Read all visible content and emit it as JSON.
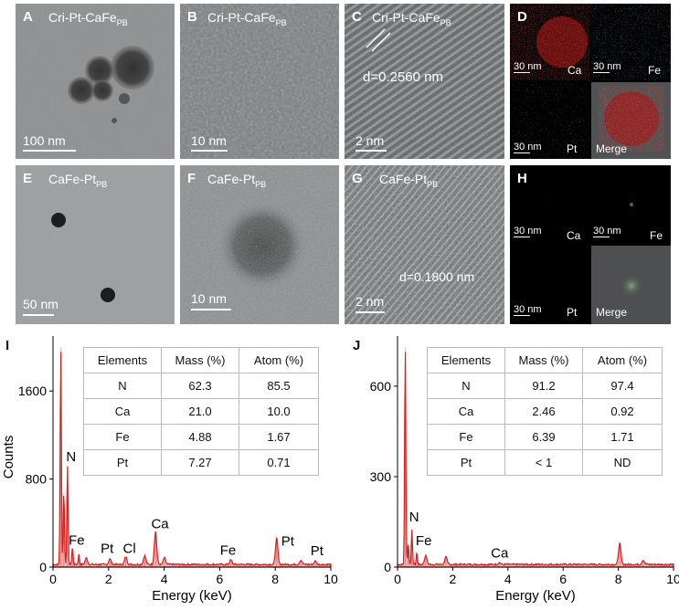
{
  "panels": {
    "A": {
      "letter": "A",
      "label_main": "Cri-Pt-CaFe",
      "label_sub": "PB",
      "scale": "100 nm"
    },
    "B": {
      "letter": "B",
      "label_main": "Cri-Pt-CaFe",
      "label_sub": "PB",
      "scale": "10 nm"
    },
    "C": {
      "letter": "C",
      "label_main": "Cri-Pt-CaFe",
      "label_sub": "PB",
      "scale": "2 nm",
      "annotation": "d=0.2560 nm"
    },
    "D": {
      "letter": "D",
      "maps": [
        {
          "element": "Ca",
          "scale": "30 nm",
          "color": "#d21e1e"
        },
        {
          "element": "Fe",
          "scale": "30 nm",
          "color": "#22a0c8"
        },
        {
          "element": "Pt",
          "scale": "30 nm",
          "color": "#3a8a3a"
        },
        {
          "element": "Merge",
          "scale": "",
          "color": "#d21e1e"
        }
      ]
    },
    "E": {
      "letter": "E",
      "label_main": "CaFe-Pt",
      "label_sub": "PB",
      "scale": "50 nm"
    },
    "F": {
      "letter": "F",
      "label_main": "CaFe-Pt",
      "label_sub": "PB",
      "scale": "10 nm"
    },
    "G": {
      "letter": "G",
      "label_main": "CaFe-Pt",
      "label_sub": "PB",
      "scale": "2 nm",
      "annotation": "d=0.1800 nm"
    },
    "H": {
      "letter": "H",
      "maps": [
        {
          "element": "Ca",
          "scale": "30 nm",
          "color": "#1a6a2a"
        },
        {
          "element": "Fe",
          "scale": "30 nm",
          "color": "#1a6a2a"
        },
        {
          "element": "Pt",
          "scale": "30 nm",
          "color": "#1a6a2a"
        },
        {
          "element": "Merge",
          "scale": "",
          "color": "#3a8a3a"
        }
      ]
    }
  },
  "chart_data": [
    {
      "letter": "I",
      "type": "line",
      "xlabel": "Energy (keV)",
      "ylabel": "Counts",
      "xlim": [
        0,
        10
      ],
      "ylim": [
        0,
        2000
      ],
      "xticks": [
        0,
        2,
        4,
        6,
        8,
        10
      ],
      "yticks": [
        0,
        800,
        1600
      ],
      "series_color": "#d81e1e",
      "peaks": [
        {
          "x": 0.28,
          "y": 2000
        },
        {
          "x": 0.39,
          "y": 680
        },
        {
          "x": 0.52,
          "y": 900
        },
        {
          "x": 0.7,
          "y": 160
        },
        {
          "x": 0.93,
          "y": 90
        },
        {
          "x": 1.2,
          "y": 60
        },
        {
          "x": 2.05,
          "y": 50
        },
        {
          "x": 2.62,
          "y": 70
        },
        {
          "x": 3.3,
          "y": 80
        },
        {
          "x": 3.69,
          "y": 300
        },
        {
          "x": 4.01,
          "y": 60
        },
        {
          "x": 6.4,
          "y": 40
        },
        {
          "x": 8.05,
          "y": 240
        },
        {
          "x": 8.92,
          "y": 40
        },
        {
          "x": 9.44,
          "y": 30
        }
      ],
      "peak_labels": [
        {
          "text": "N",
          "x": 0.65,
          "y": 930
        },
        {
          "text": "Fe",
          "x": 0.85,
          "y": 170
        },
        {
          "text": "Pt",
          "x": 1.95,
          "y": 95
        },
        {
          "text": "Cl",
          "x": 2.75,
          "y": 95
        },
        {
          "text": "Ca",
          "x": 3.85,
          "y": 320
        },
        {
          "text": "Fe",
          "x": 6.3,
          "y": 80
        },
        {
          "text": "Pt",
          "x": 8.45,
          "y": 160
        },
        {
          "text": "Pt",
          "x": 9.5,
          "y": 75
        }
      ],
      "table": {
        "headers": [
          "Elements",
          "Mass (%)",
          "Atom (%)"
        ],
        "rows": [
          [
            "N",
            "62.3",
            "85.5"
          ],
          [
            "Ca",
            "21.0",
            "10.0"
          ],
          [
            "Fe",
            "4.88",
            "1.67"
          ],
          [
            "Pt",
            "7.27",
            "0.71"
          ]
        ]
      }
    },
    {
      "letter": "J",
      "type": "line",
      "xlabel": "Energy (keV)",
      "ylabel": "",
      "xlim": [
        0,
        10
      ],
      "ylim": [
        0,
        730
      ],
      "xticks": [
        0,
        2,
        4,
        6,
        8,
        10
      ],
      "yticks": [
        0,
        300,
        600
      ],
      "series_color": "#d81e1e",
      "peaks": [
        {
          "x": 0.28,
          "y": 730
        },
        {
          "x": 0.39,
          "y": 70
        },
        {
          "x": 0.52,
          "y": 115
        },
        {
          "x": 0.7,
          "y": 40
        },
        {
          "x": 1.02,
          "y": 30
        },
        {
          "x": 1.75,
          "y": 25
        },
        {
          "x": 3.69,
          "y": 6
        },
        {
          "x": 8.05,
          "y": 70
        },
        {
          "x": 8.9,
          "y": 15
        }
      ],
      "peak_labels": [
        {
          "text": "N",
          "x": 0.6,
          "y": 140
        },
        {
          "text": "Fe",
          "x": 0.95,
          "y": 60
        },
        {
          "text": "Ca",
          "x": 3.7,
          "y": 20
        }
      ],
      "table": {
        "headers": [
          "Elements",
          "Mass (%)",
          "Atom (%)"
        ],
        "rows": [
          [
            "N",
            "91.2",
            "97.4"
          ],
          [
            "Ca",
            "2.46",
            "0.92"
          ],
          [
            "Fe",
            "6.39",
            "1.71"
          ],
          [
            "Pt",
            "< 1",
            "ND"
          ]
        ]
      }
    }
  ]
}
